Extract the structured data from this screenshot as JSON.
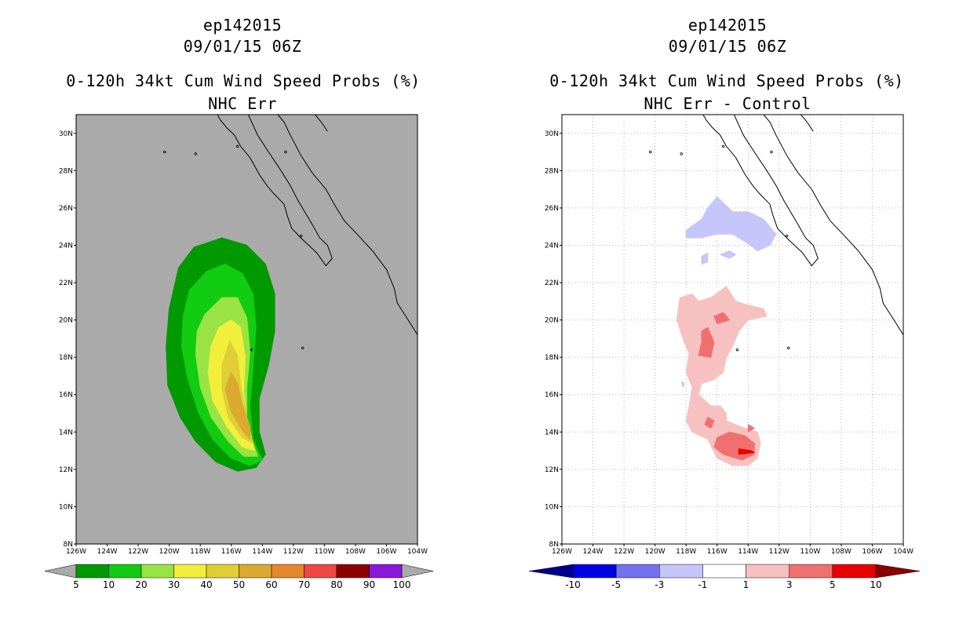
{
  "chart_data": [
    {
      "type": "filled-contour-map",
      "title_lines": [
        "ep142015",
        "09/01/15 06Z",
        "0-120h 34kt Cum Wind Speed Probs (%)",
        "NHC Err"
      ],
      "xlim": [
        -126,
        -104
      ],
      "ylim": [
        8,
        31
      ],
      "x_ticks": [
        "126W",
        "124W",
        "122W",
        "120W",
        "118W",
        "116W",
        "114W",
        "112W",
        "110W",
        "108W",
        "106W",
        "104W"
      ],
      "y_ticks": [
        "8N",
        "10N",
        "12N",
        "14N",
        "16N",
        "18N",
        "20N",
        "22N",
        "24N",
        "26N",
        "28N",
        "30N"
      ],
      "grid": false,
      "background_color": "#aaaaaa",
      "colorbar": {
        "colors": [
          "#009900",
          "#11cc11",
          "#99e344",
          "#f2ee3c",
          "#dfcf35",
          "#dba930",
          "#e8862a",
          "#ef4646",
          "#8b0000",
          "#8a18d9"
        ],
        "labels": [
          "5",
          "10",
          "20",
          "30",
          "40",
          "50",
          "60",
          "70",
          "80",
          "90",
          "100"
        ]
      },
      "contours": [
        {
          "level": "5-10",
          "color": "#009900",
          "points": [
            [
              -119.4,
              22.8
            ],
            [
              -118.4,
              23.9
            ],
            [
              -116.6,
              24.4
            ],
            [
              -115.0,
              24.0
            ],
            [
              -113.8,
              23.0
            ],
            [
              -113.2,
              21.4
            ],
            [
              -113.2,
              19.4
            ],
            [
              -113.6,
              17.6
            ],
            [
              -114.2,
              15.8
            ],
            [
              -114.2,
              14.0
            ],
            [
              -113.8,
              12.8
            ],
            [
              -114.4,
              12.1
            ],
            [
              -115.6,
              11.9
            ],
            [
              -117.0,
              12.4
            ],
            [
              -118.3,
              13.5
            ],
            [
              -119.3,
              14.8
            ],
            [
              -120.1,
              16.5
            ],
            [
              -120.2,
              18.6
            ],
            [
              -120.0,
              20.6
            ]
          ]
        },
        {
          "level": "10-20",
          "color": "#11cc11",
          "points": [
            [
              -118.7,
              21.6
            ],
            [
              -117.6,
              22.6
            ],
            [
              -116.4,
              23.0
            ],
            [
              -115.3,
              22.5
            ],
            [
              -114.6,
              21.4
            ],
            [
              -114.4,
              19.6
            ],
            [
              -114.6,
              17.4
            ],
            [
              -114.8,
              15.4
            ],
            [
              -114.6,
              13.6
            ],
            [
              -114.0,
              12.5
            ],
            [
              -114.8,
              12.2
            ],
            [
              -116.0,
              12.6
            ],
            [
              -117.2,
              13.6
            ],
            [
              -118.1,
              15.0
            ],
            [
              -118.8,
              16.8
            ],
            [
              -119.2,
              18.6
            ],
            [
              -119.1,
              20.2
            ]
          ]
        },
        {
          "level": "20-30",
          "color": "#99e344",
          "points": [
            [
              -117.7,
              20.3
            ],
            [
              -116.6,
              21.2
            ],
            [
              -115.6,
              21.2
            ],
            [
              -115.0,
              20.1
            ],
            [
              -114.8,
              18.3
            ],
            [
              -115.0,
              16.4
            ],
            [
              -115.0,
              14.4
            ],
            [
              -114.3,
              12.7
            ],
            [
              -115.2,
              12.7
            ],
            [
              -116.2,
              13.5
            ],
            [
              -117.3,
              14.8
            ],
            [
              -118.0,
              16.4
            ],
            [
              -118.3,
              18.2
            ],
            [
              -118.2,
              19.4
            ]
          ]
        },
        {
          "level": "30-40",
          "color": "#f2ee3c",
          "points": [
            [
              -116.8,
              19.6
            ],
            [
              -116.0,
              20.0
            ],
            [
              -115.4,
              19.6
            ],
            [
              -115.1,
              18.0
            ],
            [
              -115.2,
              16.2
            ],
            [
              -115.0,
              14.5
            ],
            [
              -114.5,
              13.0
            ],
            [
              -115.3,
              13.2
            ],
            [
              -116.3,
              14.3
            ],
            [
              -117.2,
              15.7
            ],
            [
              -117.5,
              17.2
            ],
            [
              -117.3,
              18.6
            ]
          ]
        },
        {
          "level": "40-50",
          "color": "#dfcf35",
          "points": [
            [
              -116.1,
              18.9
            ],
            [
              -115.6,
              18.1
            ],
            [
              -115.4,
              16.5
            ],
            [
              -115.0,
              14.8
            ],
            [
              -114.6,
              13.4
            ],
            [
              -115.3,
              13.7
            ],
            [
              -116.2,
              14.8
            ],
            [
              -116.6,
              16.3
            ],
            [
              -116.6,
              17.6
            ]
          ]
        },
        {
          "level": "50-60",
          "color": "#dba930",
          "points": [
            [
              -116.0,
              17.2
            ],
            [
              -115.6,
              16.6
            ],
            [
              -115.3,
              15.5
            ],
            [
              -114.8,
              14.3
            ],
            [
              -114.8,
              13.6
            ],
            [
              -115.4,
              14.2
            ],
            [
              -116.0,
              15.1
            ],
            [
              -116.4,
              16.3
            ]
          ]
        }
      ]
    },
    {
      "type": "filled-contour-map",
      "title_lines": [
        "ep142015",
        "09/01/15 06Z",
        "0-120h 34kt Cum Wind Speed Probs (%)",
        "NHC Err - Control"
      ],
      "xlim": [
        -126,
        -104
      ],
      "ylim": [
        8,
        31
      ],
      "x_ticks": [
        "126W",
        "124W",
        "122W",
        "120W",
        "118W",
        "116W",
        "114W",
        "112W",
        "110W",
        "108W",
        "106W",
        "104W"
      ],
      "y_ticks": [
        "8N",
        "10N",
        "12N",
        "14N",
        "16N",
        "18N",
        "20N",
        "22N",
        "24N",
        "26N",
        "28N",
        "30N"
      ],
      "grid": true,
      "background_color": "#ffffff",
      "colorbar": {
        "colors": [
          "#0000e0",
          "#7272f0",
          "#c6c6fa",
          "#ffffff",
          "#f8c1c1",
          "#f07070",
          "#e80000"
        ],
        "labels": [
          "-10",
          "-5",
          "-3",
          "-1",
          "1",
          "3",
          "5",
          "10"
        ]
      },
      "contours": [
        {
          "level": "-3 to -1",
          "color": "#c6c6fa",
          "points": [
            [
              -118.0,
              24.8
            ],
            [
              -117.0,
              25.4
            ],
            [
              -116.6,
              26.0
            ],
            [
              -116.0,
              26.6
            ],
            [
              -115.0,
              25.8
            ],
            [
              -114.0,
              25.8
            ],
            [
              -113.0,
              25.4
            ],
            [
              -112.2,
              24.6
            ],
            [
              -112.6,
              24.0
            ],
            [
              -113.4,
              23.7
            ],
            [
              -114.2,
              24.2
            ],
            [
              -115.0,
              24.6
            ],
            [
              -116.0,
              24.6
            ],
            [
              -117.0,
              24.4
            ],
            [
              -118.0,
              24.4
            ]
          ]
        },
        {
          "level": "-3 to -1",
          "color": "#c6c6fa",
          "points": [
            [
              -115.8,
              23.5
            ],
            [
              -115.2,
              23.7
            ],
            [
              -114.8,
              23.5
            ],
            [
              -115.2,
              23.3
            ]
          ]
        },
        {
          "level": "-3 to -1",
          "color": "#c6c6fa",
          "points": [
            [
              -117.0,
              23.4
            ],
            [
              -116.6,
              23.6
            ],
            [
              -116.6,
              23.1
            ],
            [
              -117.0,
              23.0
            ]
          ]
        },
        {
          "level": "1 to 3",
          "color": "#f8c1c1",
          "points": [
            [
              -118.4,
              21.2
            ],
            [
              -117.6,
              21.4
            ],
            [
              -117.2,
              21.0
            ],
            [
              -116.4,
              21.2
            ],
            [
              -115.4,
              21.8
            ],
            [
              -114.8,
              21.0
            ],
            [
              -114.0,
              20.8
            ],
            [
              -113.0,
              20.6
            ],
            [
              -112.8,
              20.2
            ],
            [
              -114.0,
              20.0
            ],
            [
              -114.6,
              19.4
            ],
            [
              -115.0,
              18.6
            ],
            [
              -115.4,
              18.0
            ],
            [
              -115.6,
              17.2
            ],
            [
              -116.2,
              16.8
            ],
            [
              -117.0,
              16.6
            ],
            [
              -117.2,
              16.0
            ],
            [
              -116.4,
              15.4
            ],
            [
              -115.8,
              15.4
            ],
            [
              -115.4,
              15.0
            ],
            [
              -115.4,
              14.6
            ],
            [
              -114.8,
              14.4
            ],
            [
              -114.2,
              14.2
            ],
            [
              -113.4,
              14.0
            ],
            [
              -113.2,
              13.4
            ],
            [
              -113.4,
              12.6
            ],
            [
              -114.0,
              12.2
            ],
            [
              -115.0,
              12.2
            ],
            [
              -116.0,
              12.6
            ],
            [
              -116.6,
              13.6
            ],
            [
              -117.6,
              14.0
            ],
            [
              -118.0,
              14.6
            ],
            [
              -117.8,
              15.4
            ],
            [
              -117.6,
              16.4
            ],
            [
              -118.0,
              17.2
            ],
            [
              -117.8,
              18.2
            ],
            [
              -118.2,
              19.0
            ],
            [
              -118.6,
              20.0
            ]
          ]
        },
        {
          "level": "3 to 5",
          "color": "#f07070",
          "points": [
            [
              -116.2,
              20.2
            ],
            [
              -115.6,
              20.4
            ],
            [
              -115.2,
              20.0
            ],
            [
              -116.0,
              19.8
            ]
          ]
        },
        {
          "level": "3 to 5",
          "color": "#f07070",
          "points": [
            [
              -117.0,
              19.4
            ],
            [
              -116.6,
              19.6
            ],
            [
              -116.2,
              18.8
            ],
            [
              -116.4,
              18.0
            ],
            [
              -117.2,
              18.1
            ],
            [
              -117.0,
              18.8
            ]
          ]
        },
        {
          "level": "3 to 5",
          "color": "#f07070",
          "points": [
            [
              -116.0,
              13.7
            ],
            [
              -115.2,
              14.0
            ],
            [
              -114.2,
              13.8
            ],
            [
              -113.6,
              13.4
            ],
            [
              -113.6,
              12.8
            ],
            [
              -114.4,
              12.5
            ],
            [
              -115.6,
              12.8
            ],
            [
              -116.2,
              13.2
            ]
          ]
        },
        {
          "level": "3 to 5",
          "color": "#f07070",
          "points": [
            [
              -114.0,
              14.4
            ],
            [
              -113.6,
              14.2
            ],
            [
              -114.0,
              14.0
            ]
          ]
        },
        {
          "level": "3 to 5",
          "color": "#f07070",
          "points": [
            [
              -116.6,
              14.8
            ],
            [
              -116.2,
              14.6
            ],
            [
              -116.4,
              14.2
            ],
            [
              -116.8,
              14.4
            ]
          ]
        },
        {
          "level": "5 to 10",
          "color": "#e80000",
          "points": [
            [
              -114.6,
              13.1
            ],
            [
              -113.8,
              13.0
            ],
            [
              -113.6,
              12.9
            ],
            [
              -114.6,
              12.8
            ]
          ]
        },
        {
          "level": "-3 to -1",
          "color": "#c6c6fa",
          "points": [
            [
              -118.3,
              16.7
            ],
            [
              -118.1,
              16.6
            ],
            [
              -118.2,
              16.4
            ]
          ]
        }
      ]
    }
  ]
}
